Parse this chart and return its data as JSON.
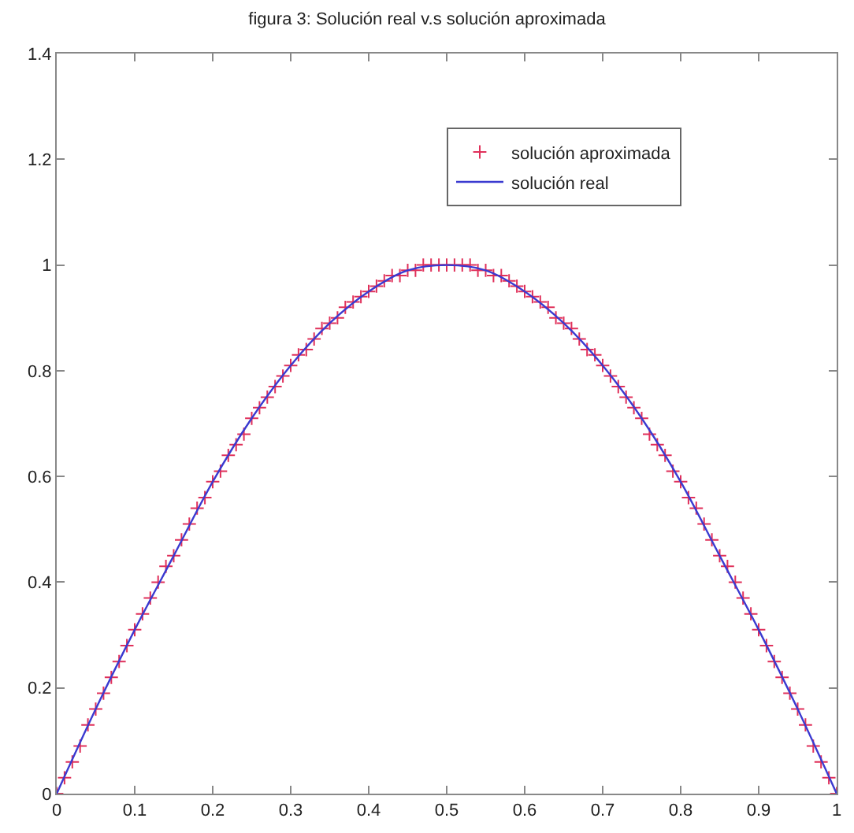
{
  "chart_data": {
    "type": "line",
    "title": "figura 3: Solución real v.s solución aproximada",
    "xlim": [
      0,
      1
    ],
    "xticks": [
      0,
      0.1,
      0.2,
      0.3,
      0.4,
      0.5,
      0.6,
      0.7,
      0.8,
      0.9,
      1
    ],
    "ylim": [
      0,
      1.4
    ],
    "yticks": [
      0,
      0.2,
      0.4,
      0.6,
      0.8,
      1,
      1.2,
      1.4
    ],
    "legend": "top right",
    "series": [
      {
        "name": "solución aproximada",
        "type": "scatter",
        "marker": "cross",
        "color": "#e0305a",
        "x": [
          0,
          0.01,
          0.02,
          0.03,
          0.04,
          0.05,
          0.06,
          0.07,
          0.08,
          0.09,
          0.1,
          0.11,
          0.12,
          0.13,
          0.14,
          0.15,
          0.16,
          0.17,
          0.18,
          0.19,
          0.2,
          0.21,
          0.22,
          0.23,
          0.24,
          0.25,
          0.26,
          0.27,
          0.28,
          0.29,
          0.3,
          0.31,
          0.32,
          0.33,
          0.34,
          0.35,
          0.36,
          0.37,
          0.38,
          0.39,
          0.4,
          0.41,
          0.42,
          0.43,
          0.44,
          0.45,
          0.46,
          0.47,
          0.48,
          0.49,
          0.5,
          0.51,
          0.52,
          0.53,
          0.54,
          0.55,
          0.56,
          0.57,
          0.58,
          0.59,
          0.6,
          0.61,
          0.62,
          0.63,
          0.64,
          0.65,
          0.66,
          0.67,
          0.68,
          0.69,
          0.7,
          0.71,
          0.72,
          0.73,
          0.74,
          0.75,
          0.76,
          0.77,
          0.78,
          0.79,
          0.8,
          0.81,
          0.82,
          0.83,
          0.84,
          0.85,
          0.86,
          0.87,
          0.88,
          0.89,
          0.9,
          0.91,
          0.92,
          0.93,
          0.94,
          0.95,
          0.96,
          0.97,
          0.98,
          0.99,
          1
        ],
        "values": [
          0,
          0.03,
          0.06,
          0.09,
          0.13,
          0.16,
          0.19,
          0.22,
          0.25,
          0.28,
          0.31,
          0.34,
          0.37,
          0.4,
          0.43,
          0.45,
          0.48,
          0.51,
          0.54,
          0.56,
          0.59,
          0.61,
          0.64,
          0.66,
          0.68,
          0.71,
          0.73,
          0.75,
          0.77,
          0.79,
          0.81,
          0.83,
          0.84,
          0.86,
          0.88,
          0.89,
          0.9,
          0.92,
          0.93,
          0.94,
          0.95,
          0.96,
          0.97,
          0.98,
          0.98,
          0.99,
          0.99,
          1,
          1,
          1,
          1,
          1,
          1,
          1,
          0.99,
          0.99,
          0.98,
          0.98,
          0.97,
          0.96,
          0.95,
          0.94,
          0.93,
          0.92,
          0.9,
          0.89,
          0.88,
          0.86,
          0.84,
          0.83,
          0.81,
          0.79,
          0.77,
          0.75,
          0.73,
          0.71,
          0.68,
          0.66,
          0.64,
          0.61,
          0.59,
          0.56,
          0.54,
          0.51,
          0.48,
          0.45,
          0.43,
          0.4,
          0.37,
          0.34,
          0.31,
          0.28,
          0.25,
          0.22,
          0.19,
          0.16,
          0.13,
          0.09,
          0.06,
          0.03,
          0
        ]
      },
      {
        "name": "solución real",
        "line_style": "solid",
        "color": "#3a3ad0",
        "x": [
          0,
          0.05,
          0.1,
          0.15,
          0.2,
          0.25,
          0.3,
          0.35,
          0.4,
          0.45,
          0.5,
          0.55,
          0.6,
          0.65,
          0.7,
          0.75,
          0.8,
          0.85,
          0.9,
          0.95,
          1
        ],
        "values": [
          0,
          0.16,
          0.31,
          0.45,
          0.59,
          0.71,
          0.81,
          0.89,
          0.95,
          0.99,
          1,
          0.99,
          0.95,
          0.89,
          0.81,
          0.71,
          0.59,
          0.45,
          0.31,
          0.16,
          0
        ]
      }
    ]
  }
}
